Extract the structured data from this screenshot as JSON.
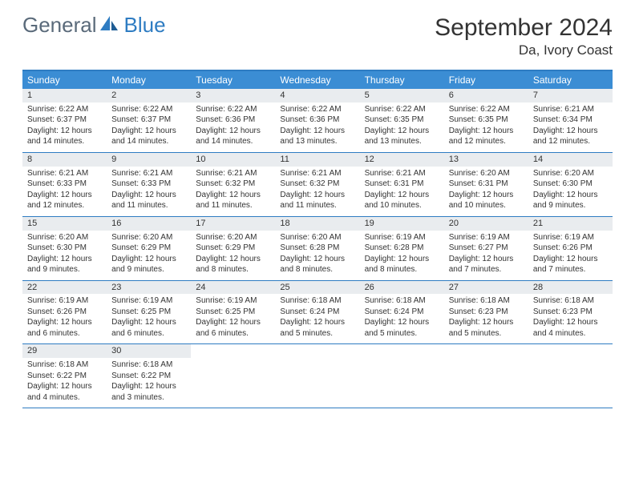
{
  "brand": {
    "general": "General",
    "blue": "Blue"
  },
  "title": "September 2024",
  "subtitle": "Da, Ivory Coast",
  "colors": {
    "header_bg": "#3b8dd4",
    "border": "#2e7cc2",
    "daynum_bg": "#e9ecef",
    "text": "#333333",
    "logo_gray": "#5a6a7a",
    "logo_blue": "#2e7cc2",
    "page_bg": "#ffffff"
  },
  "typography": {
    "title_fontsize": 30,
    "subtitle_fontsize": 17,
    "dow_fontsize": 12,
    "cell_fontsize": 10,
    "logo_fontsize": 26
  },
  "dow": [
    "Sunday",
    "Monday",
    "Tuesday",
    "Wednesday",
    "Thursday",
    "Friday",
    "Saturday"
  ],
  "weeks": [
    [
      {
        "n": "1",
        "sr": "Sunrise: 6:22 AM",
        "ss": "Sunset: 6:37 PM",
        "dl": "Daylight: 12 hours and 14 minutes."
      },
      {
        "n": "2",
        "sr": "Sunrise: 6:22 AM",
        "ss": "Sunset: 6:37 PM",
        "dl": "Daylight: 12 hours and 14 minutes."
      },
      {
        "n": "3",
        "sr": "Sunrise: 6:22 AM",
        "ss": "Sunset: 6:36 PM",
        "dl": "Daylight: 12 hours and 14 minutes."
      },
      {
        "n": "4",
        "sr": "Sunrise: 6:22 AM",
        "ss": "Sunset: 6:36 PM",
        "dl": "Daylight: 12 hours and 13 minutes."
      },
      {
        "n": "5",
        "sr": "Sunrise: 6:22 AM",
        "ss": "Sunset: 6:35 PM",
        "dl": "Daylight: 12 hours and 13 minutes."
      },
      {
        "n": "6",
        "sr": "Sunrise: 6:22 AM",
        "ss": "Sunset: 6:35 PM",
        "dl": "Daylight: 12 hours and 12 minutes."
      },
      {
        "n": "7",
        "sr": "Sunrise: 6:21 AM",
        "ss": "Sunset: 6:34 PM",
        "dl": "Daylight: 12 hours and 12 minutes."
      }
    ],
    [
      {
        "n": "8",
        "sr": "Sunrise: 6:21 AM",
        "ss": "Sunset: 6:33 PM",
        "dl": "Daylight: 12 hours and 12 minutes."
      },
      {
        "n": "9",
        "sr": "Sunrise: 6:21 AM",
        "ss": "Sunset: 6:33 PM",
        "dl": "Daylight: 12 hours and 11 minutes."
      },
      {
        "n": "10",
        "sr": "Sunrise: 6:21 AM",
        "ss": "Sunset: 6:32 PM",
        "dl": "Daylight: 12 hours and 11 minutes."
      },
      {
        "n": "11",
        "sr": "Sunrise: 6:21 AM",
        "ss": "Sunset: 6:32 PM",
        "dl": "Daylight: 12 hours and 11 minutes."
      },
      {
        "n": "12",
        "sr": "Sunrise: 6:21 AM",
        "ss": "Sunset: 6:31 PM",
        "dl": "Daylight: 12 hours and 10 minutes."
      },
      {
        "n": "13",
        "sr": "Sunrise: 6:20 AM",
        "ss": "Sunset: 6:31 PM",
        "dl": "Daylight: 12 hours and 10 minutes."
      },
      {
        "n": "14",
        "sr": "Sunrise: 6:20 AM",
        "ss": "Sunset: 6:30 PM",
        "dl": "Daylight: 12 hours and 9 minutes."
      }
    ],
    [
      {
        "n": "15",
        "sr": "Sunrise: 6:20 AM",
        "ss": "Sunset: 6:30 PM",
        "dl": "Daylight: 12 hours and 9 minutes."
      },
      {
        "n": "16",
        "sr": "Sunrise: 6:20 AM",
        "ss": "Sunset: 6:29 PM",
        "dl": "Daylight: 12 hours and 9 minutes."
      },
      {
        "n": "17",
        "sr": "Sunrise: 6:20 AM",
        "ss": "Sunset: 6:29 PM",
        "dl": "Daylight: 12 hours and 8 minutes."
      },
      {
        "n": "18",
        "sr": "Sunrise: 6:20 AM",
        "ss": "Sunset: 6:28 PM",
        "dl": "Daylight: 12 hours and 8 minutes."
      },
      {
        "n": "19",
        "sr": "Sunrise: 6:19 AM",
        "ss": "Sunset: 6:28 PM",
        "dl": "Daylight: 12 hours and 8 minutes."
      },
      {
        "n": "20",
        "sr": "Sunrise: 6:19 AM",
        "ss": "Sunset: 6:27 PM",
        "dl": "Daylight: 12 hours and 7 minutes."
      },
      {
        "n": "21",
        "sr": "Sunrise: 6:19 AM",
        "ss": "Sunset: 6:26 PM",
        "dl": "Daylight: 12 hours and 7 minutes."
      }
    ],
    [
      {
        "n": "22",
        "sr": "Sunrise: 6:19 AM",
        "ss": "Sunset: 6:26 PM",
        "dl": "Daylight: 12 hours and 6 minutes."
      },
      {
        "n": "23",
        "sr": "Sunrise: 6:19 AM",
        "ss": "Sunset: 6:25 PM",
        "dl": "Daylight: 12 hours and 6 minutes."
      },
      {
        "n": "24",
        "sr": "Sunrise: 6:19 AM",
        "ss": "Sunset: 6:25 PM",
        "dl": "Daylight: 12 hours and 6 minutes."
      },
      {
        "n": "25",
        "sr": "Sunrise: 6:18 AM",
        "ss": "Sunset: 6:24 PM",
        "dl": "Daylight: 12 hours and 5 minutes."
      },
      {
        "n": "26",
        "sr": "Sunrise: 6:18 AM",
        "ss": "Sunset: 6:24 PM",
        "dl": "Daylight: 12 hours and 5 minutes."
      },
      {
        "n": "27",
        "sr": "Sunrise: 6:18 AM",
        "ss": "Sunset: 6:23 PM",
        "dl": "Daylight: 12 hours and 5 minutes."
      },
      {
        "n": "28",
        "sr": "Sunrise: 6:18 AM",
        "ss": "Sunset: 6:23 PM",
        "dl": "Daylight: 12 hours and 4 minutes."
      }
    ],
    [
      {
        "n": "29",
        "sr": "Sunrise: 6:18 AM",
        "ss": "Sunset: 6:22 PM",
        "dl": "Daylight: 12 hours and 4 minutes."
      },
      {
        "n": "30",
        "sr": "Sunrise: 6:18 AM",
        "ss": "Sunset: 6:22 PM",
        "dl": "Daylight: 12 hours and 3 minutes."
      },
      {
        "empty": true
      },
      {
        "empty": true
      },
      {
        "empty": true
      },
      {
        "empty": true
      },
      {
        "empty": true
      }
    ]
  ]
}
